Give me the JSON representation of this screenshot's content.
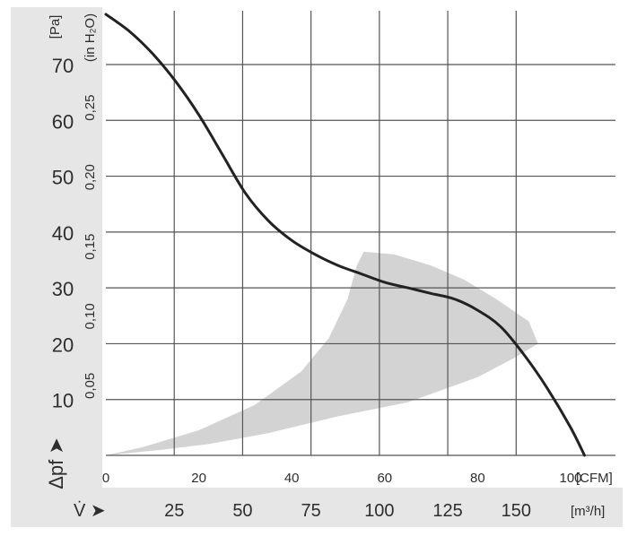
{
  "chart_data": {
    "type": "line",
    "series": [
      {
        "values": [
          {
            "x": 0,
            "y": 79
          },
          {
            "x": 5,
            "y": 76
          },
          {
            "x": 10,
            "y": 72
          },
          {
            "x": 15,
            "y": 67
          },
          {
            "x": 20,
            "y": 61
          },
          {
            "x": 25,
            "y": 54
          },
          {
            "x": 30,
            "y": 47
          },
          {
            "x": 35,
            "y": 42
          },
          {
            "x": 40,
            "y": 38.5
          },
          {
            "x": 45,
            "y": 36
          },
          {
            "x": 50,
            "y": 34
          },
          {
            "x": 55,
            "y": 32.5
          },
          {
            "x": 60,
            "y": 31
          },
          {
            "x": 65,
            "y": 30
          },
          {
            "x": 70,
            "y": 29
          },
          {
            "x": 75,
            "y": 28
          },
          {
            "x": 80,
            "y": 26
          },
          {
            "x": 85,
            "y": 23
          },
          {
            "x": 90,
            "y": 18
          },
          {
            "x": 95,
            "y": 12
          },
          {
            "x": 100,
            "y": 5
          },
          {
            "x": 103,
            "y": 0
          }
        ]
      }
    ],
    "shaded_region": [
      {
        "x": 0,
        "y": 0
      },
      {
        "x": 12,
        "y": 1
      },
      {
        "x": 22,
        "y": 2
      },
      {
        "x": 35,
        "y": 4
      },
      {
        "x": 50,
        "y": 7
      },
      {
        "x": 65,
        "y": 9.5
      },
      {
        "x": 80,
        "y": 14
      },
      {
        "x": 88,
        "y": 17.5
      },
      {
        "x": 93,
        "y": 20
      },
      {
        "x": 91,
        "y": 24
      },
      {
        "x": 84,
        "y": 28
      },
      {
        "x": 77,
        "y": 31.5
      },
      {
        "x": 70,
        "y": 34
      },
      {
        "x": 62,
        "y": 36
      },
      {
        "x": 55.5,
        "y": 36.5
      },
      {
        "x": 54,
        "y": 34
      },
      {
        "x": 52,
        "y": 28
      },
      {
        "x": 48,
        "y": 21
      },
      {
        "x": 42,
        "y": 15
      },
      {
        "x": 32,
        "y": 9
      },
      {
        "x": 20,
        "y": 4.5
      },
      {
        "x": 8,
        "y": 1.5
      }
    ],
    "xlim": [
      0,
      110
    ],
    "ylim": [
      0,
      80
    ],
    "y_unit": "[Pa]",
    "y_alt_unit": "(in H₂O)",
    "x_unit": "[CFM]",
    "x_alt_unit": "[m³/h]",
    "y_symbol": "Δpf ➤",
    "x_symbol": "V̇ ➤",
    "y_ticks": [
      "70",
      "60",
      "50",
      "40",
      "30",
      "20",
      "10"
    ],
    "y_tick_values": [
      70,
      60,
      50,
      40,
      30,
      20,
      10
    ],
    "y_alt_ticks": [
      "0,25",
      "0,20",
      "0,15",
      "0,10",
      "0,05"
    ],
    "y_alt_tick_values": [
      0.25,
      0.2,
      0.15,
      0.1,
      0.05
    ],
    "x_ticks": [
      "0",
      "20",
      "40",
      "60",
      "80",
      "100"
    ],
    "x_tick_values": [
      0,
      20,
      40,
      60,
      80,
      100
    ],
    "x_alt_ticks": [
      "25",
      "50",
      "75",
      "100",
      "125",
      "150"
    ],
    "x_alt_tick_values": [
      25,
      50,
      75,
      100,
      125,
      150
    ],
    "grid": true,
    "colors": {
      "curve": "#222222",
      "region": "#d3d3d3",
      "grid": "#555555",
      "axis_band": "#e6e6e6",
      "label": "#2e2e2e"
    }
  }
}
